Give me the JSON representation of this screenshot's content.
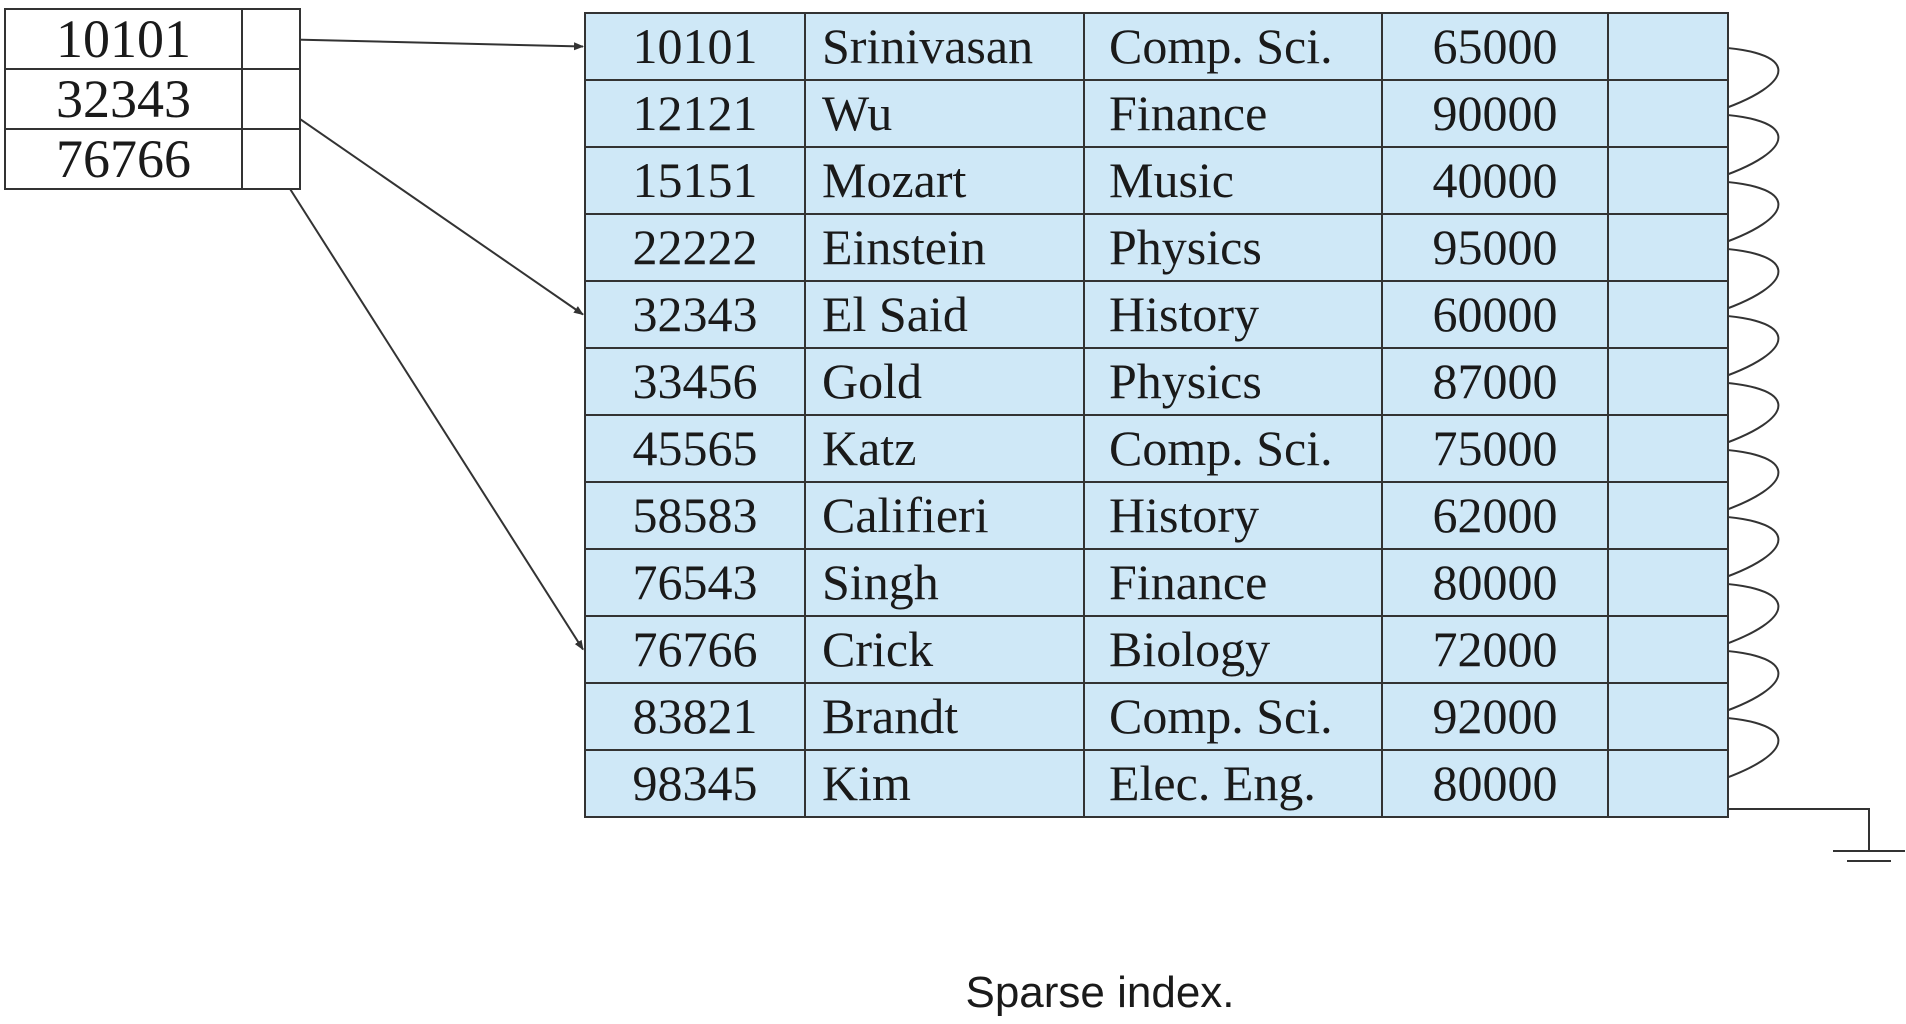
{
  "index": [
    {
      "key": "10101",
      "target": 0
    },
    {
      "key": "32343",
      "target": 4
    },
    {
      "key": "76766",
      "target": 9
    }
  ],
  "records": [
    {
      "id": "10101",
      "name": "Srinivasan",
      "dept": "Comp. Sci.",
      "salary": "65000"
    },
    {
      "id": "12121",
      "name": "Wu",
      "dept": "Finance",
      "salary": "90000"
    },
    {
      "id": "15151",
      "name": "Mozart",
      "dept": "Music",
      "salary": "40000"
    },
    {
      "id": "22222",
      "name": "Einstein",
      "dept": "Physics",
      "salary": "95000"
    },
    {
      "id": "32343",
      "name": "El Said",
      "dept": "History",
      "salary": "60000"
    },
    {
      "id": "33456",
      "name": "Gold",
      "dept": "Physics",
      "salary": "87000"
    },
    {
      "id": "45565",
      "name": "Katz",
      "dept": "Comp. Sci.",
      "salary": "75000"
    },
    {
      "id": "58583",
      "name": "Califieri",
      "dept": "History",
      "salary": "62000"
    },
    {
      "id": "76543",
      "name": "Singh",
      "dept": "Finance",
      "salary": "80000"
    },
    {
      "id": "76766",
      "name": "Crick",
      "dept": "Biology",
      "salary": "72000"
    },
    {
      "id": "83821",
      "name": "Brandt",
      "dept": "Comp. Sci.",
      "salary": "92000"
    },
    {
      "id": "98345",
      "name": "Kim",
      "dept": "Elec. Eng.",
      "salary": "80000"
    }
  ],
  "caption": "Sparse index.",
  "colors": {
    "record_fill": "#cfe8f7",
    "line": "#333333"
  }
}
